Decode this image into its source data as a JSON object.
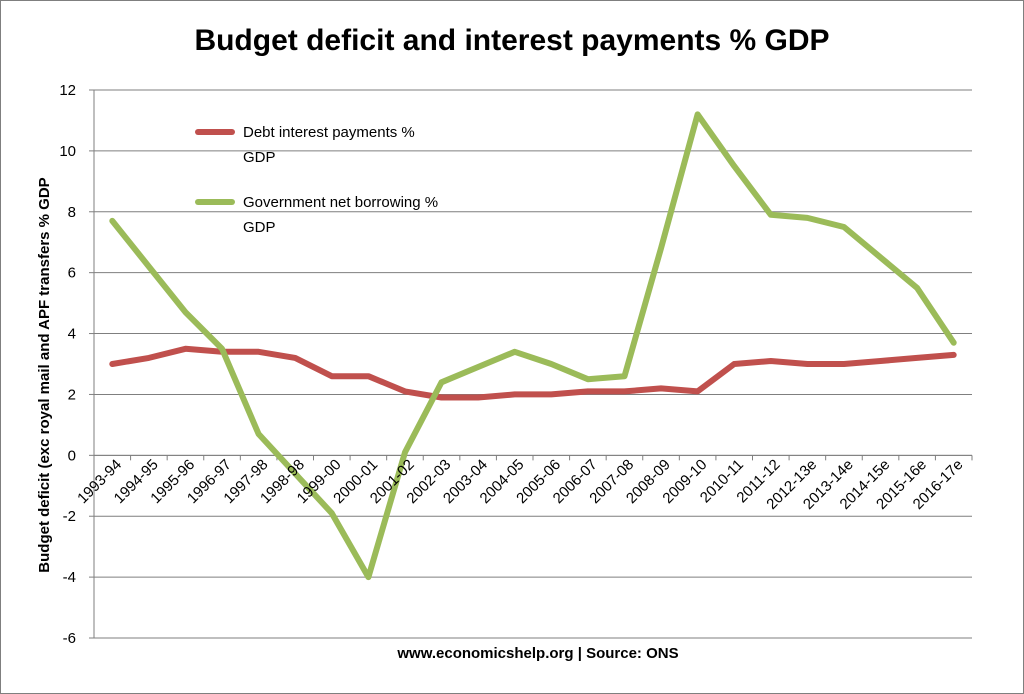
{
  "chart_data": {
    "type": "line",
    "title": "Budget deficit and interest payments % GDP",
    "xlabel": "www.economicshelp.org | Source: ONS",
    "ylabel": "Budget deficit (exc royal mail and APF transfers % GDP",
    "ylim": [
      -6,
      12
    ],
    "yticks": [
      -6,
      -4,
      -2,
      0,
      2,
      4,
      6,
      8,
      10,
      12
    ],
    "categories": [
      "1993-94",
      "1994-95",
      "1995-96",
      "1996-97",
      "1997-98",
      "1998-98",
      "1999-00",
      "2000-01",
      "2001-02",
      "2002-03",
      "2003-04",
      "2004-05",
      "2005-06",
      "2006-07",
      "2007-08",
      "2008-09",
      "2009-10",
      "2010-11",
      "2011-12",
      "2012-13e",
      "2013-14e",
      "2014-15e",
      "2015-16e",
      "2016-17e"
    ],
    "series": [
      {
        "name": "Debt interest payments % GDP",
        "legend_lines": [
          "Debt interest payments %",
          "GDP"
        ],
        "color": "#c0504d",
        "values": [
          3.0,
          3.2,
          3.5,
          3.4,
          3.4,
          3.2,
          2.6,
          2.6,
          2.1,
          1.9,
          1.9,
          2.0,
          2.0,
          2.1,
          2.1,
          2.2,
          2.1,
          3.0,
          3.1,
          3.0,
          3.0,
          3.1,
          3.2,
          3.3
        ]
      },
      {
        "name": "Government net borrowing % GDP",
        "legend_lines": [
          "Government net borrowing %",
          "GDP"
        ],
        "color": "#9bbb59",
        "values": [
          7.7,
          6.2,
          4.7,
          3.5,
          0.7,
          -0.6,
          -1.9,
          -4.0,
          0.1,
          2.4,
          2.9,
          3.4,
          3.0,
          2.5,
          2.6,
          6.8,
          11.2,
          9.5,
          7.9,
          7.8,
          7.5,
          6.5,
          5.5,
          3.7
        ]
      }
    ]
  }
}
